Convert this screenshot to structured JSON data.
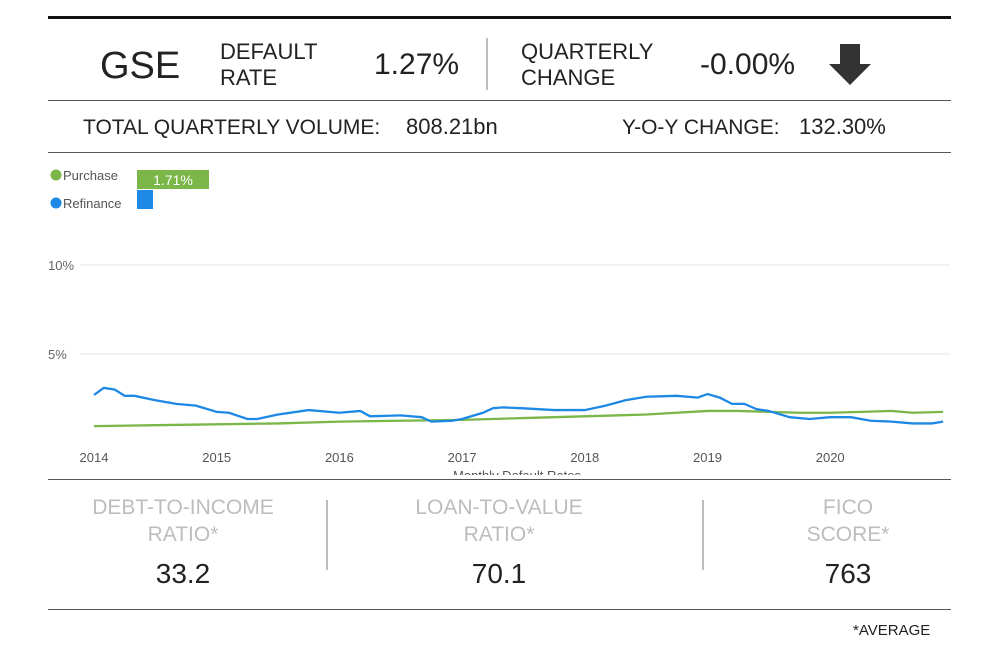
{
  "header": {
    "entity": "GSE",
    "default_rate_label": [
      "DEFAULT",
      "RATE"
    ],
    "default_rate": "1.27%",
    "quarterly_change_label": [
      "QUARTERLY",
      "CHANGE"
    ],
    "quarterly_change": "-0.00%",
    "change_icon": "arrow-down-icon"
  },
  "volume": {
    "label": "TOTAL QUARTERLY VOLUME:",
    "value": "808.21bn",
    "yoy_label": "Y-O-Y CHANGE:",
    "yoy_value": "132.30%"
  },
  "colors": {
    "purchase": "#7ab648",
    "refinance": "#1e88e5"
  },
  "chart_data": {
    "type": "line",
    "xlabel": "Monthly Default Rates",
    "ylabel": "",
    "xlim": [
      2014,
      2020.95
    ],
    "ylim": [
      0,
      10
    ],
    "yticks": [
      "5%",
      "10%"
    ],
    "xticks": [
      "2014",
      "2015",
      "2016",
      "2017",
      "2018",
      "2019",
      "2020"
    ],
    "grid": true,
    "legend": "top-left",
    "bar_label": "1.71%",
    "series": [
      {
        "name": "Purchase",
        "x": [
          2014,
          2014.5,
          2015,
          2015.5,
          2016,
          2016.5,
          2017,
          2017.5,
          2018,
          2018.5,
          2019,
          2019.25,
          2019.5,
          2019.75,
          2020,
          2020.25,
          2020.5,
          2020.67,
          2020.92
        ],
        "values": [
          0.95,
          1.0,
          1.05,
          1.1,
          1.2,
          1.25,
          1.3,
          1.4,
          1.5,
          1.6,
          1.8,
          1.8,
          1.75,
          1.7,
          1.7,
          1.75,
          1.8,
          1.7,
          1.75
        ]
      },
      {
        "name": "Refinance",
        "x": [
          2014,
          2014.08,
          2014.17,
          2014.25,
          2014.33,
          2014.5,
          2014.67,
          2014.83,
          2015,
          2015.1,
          2015.25,
          2015.33,
          2015.5,
          2015.75,
          2016,
          2016.17,
          2016.25,
          2016.5,
          2016.67,
          2016.75,
          2016.92,
          2017,
          2017.17,
          2017.25,
          2017.33,
          2017.5,
          2017.75,
          2018,
          2018.17,
          2018.33,
          2018.5,
          2018.75,
          2018.92,
          2019,
          2019.1,
          2019.2,
          2019.3,
          2019.4,
          2019.5,
          2019.67,
          2019.83,
          2020,
          2020.17,
          2020.33,
          2020.5,
          2020.67,
          2020.83,
          2020.92
        ],
        "values": [
          2.7,
          3.1,
          3.0,
          2.65,
          2.65,
          2.4,
          2.2,
          2.1,
          1.75,
          1.7,
          1.35,
          1.35,
          1.6,
          1.85,
          1.7,
          1.8,
          1.5,
          1.55,
          1.45,
          1.2,
          1.25,
          1.35,
          1.7,
          1.95,
          2.0,
          1.95,
          1.85,
          1.85,
          2.1,
          2.4,
          2.6,
          2.65,
          2.55,
          2.75,
          2.55,
          2.2,
          2.2,
          1.9,
          1.8,
          1.45,
          1.35,
          1.45,
          1.45,
          1.25,
          1.2,
          1.1,
          1.1,
          1.2
        ]
      }
    ]
  },
  "metrics": [
    {
      "label": [
        "DEBT-TO-INCOME",
        "RATIO*"
      ],
      "value": "33.2"
    },
    {
      "label": [
        "LOAN-TO-VALUE",
        "RATIO*"
      ],
      "value": "70.1"
    },
    {
      "label": [
        "FICO",
        "SCORE*"
      ],
      "value": "763"
    }
  ],
  "footnote": "*AVERAGE"
}
